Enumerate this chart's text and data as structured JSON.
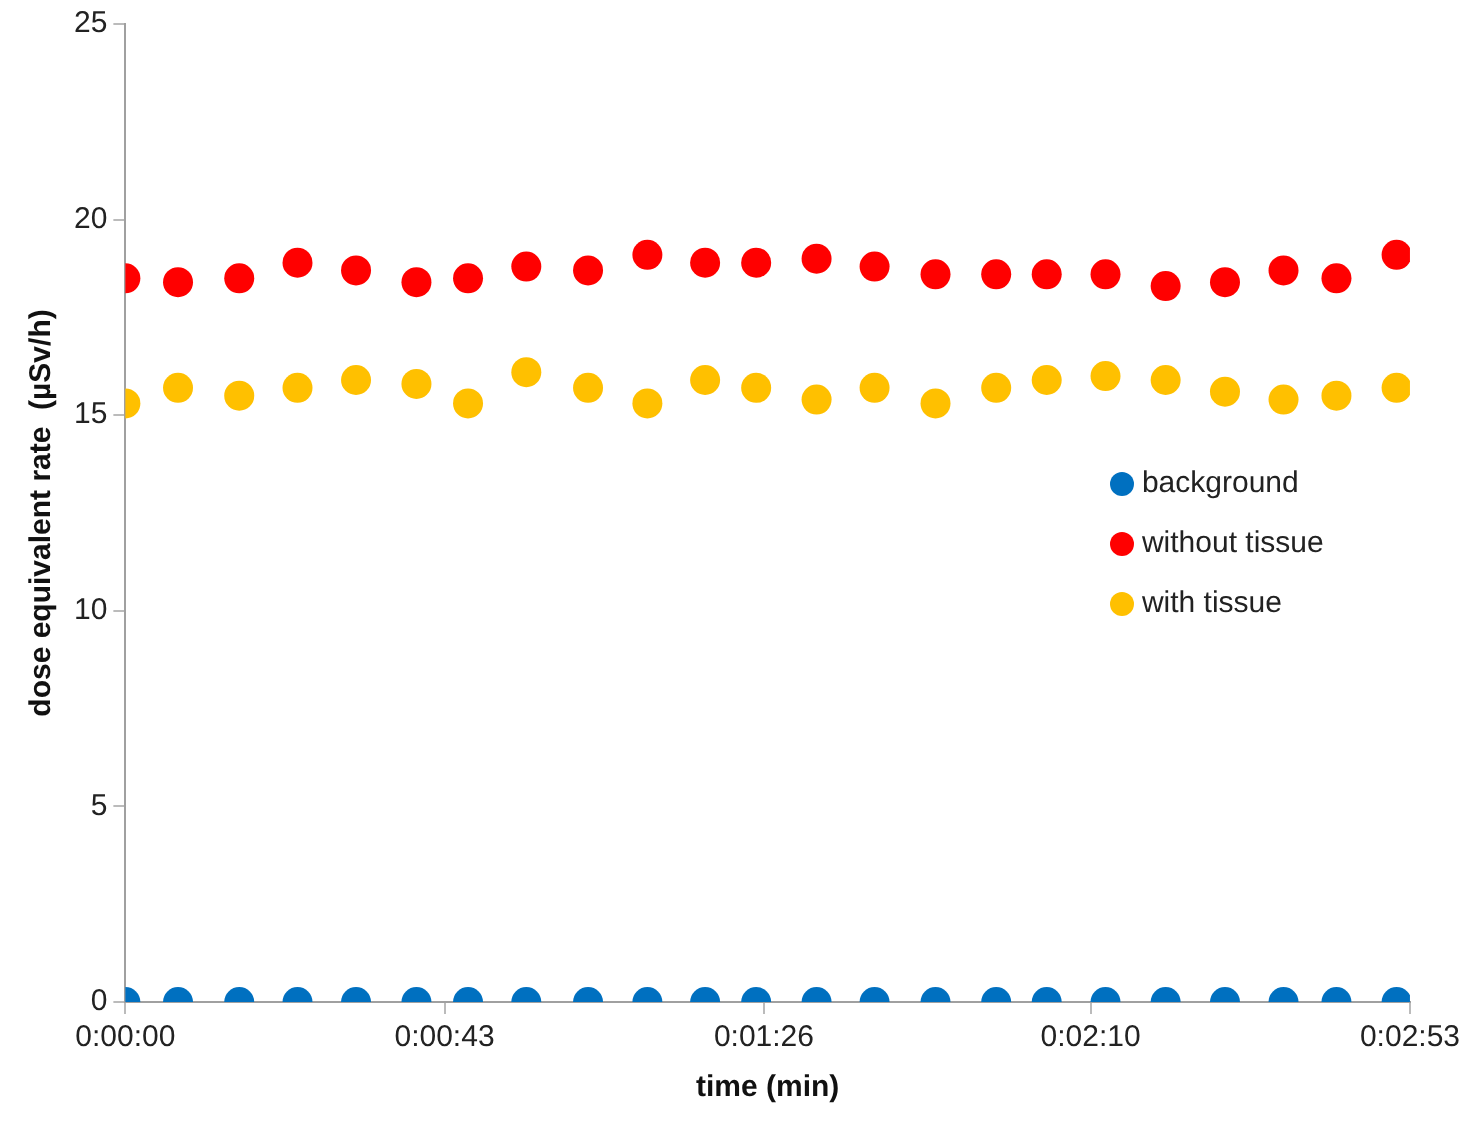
{
  "chart_data": {
    "type": "scatter",
    "xlabel": "time (min)",
    "ylabel": "dose equivalent rate  (µSv/h)",
    "x": [
      0,
      0.00197,
      0.00426,
      0.00644,
      0.00863,
      0.01089,
      0.01282,
      0.015,
      0.01731,
      0.01953,
      0.02169,
      0.0236,
      0.02586,
      0.02803,
      0.03031,
      0.03258,
      0.03447,
      0.03667,
      0.03892,
      0.04114,
      0.04333,
      0.04531,
      0.04756
    ],
    "series": [
      {
        "name": "background",
        "color": "#0070c0",
        "values": [
          0,
          0,
          0,
          0,
          0,
          0,
          0,
          0,
          0,
          0,
          0,
          0,
          0,
          0,
          0,
          0,
          0,
          0,
          0,
          0,
          0,
          0,
          0
        ]
      },
      {
        "name": "without tissue",
        "color": "#ff0000",
        "values": [
          18.5,
          18.4,
          18.5,
          18.9,
          18.7,
          18.4,
          18.5,
          18.8,
          18.7,
          19.1,
          18.9,
          18.9,
          19.0,
          18.8,
          18.6,
          18.6,
          18.6,
          18.6,
          18.3,
          18.4,
          18.7,
          18.5,
          19.1
        ]
      },
      {
        "name": "with tissue",
        "color": "#ffc000",
        "values": [
          15.3,
          15.7,
          15.5,
          15.7,
          15.9,
          15.8,
          15.3,
          16.1,
          15.7,
          15.3,
          15.9,
          15.7,
          15.4,
          15.7,
          15.3,
          15.7,
          15.9,
          16.0,
          15.9,
          15.6,
          15.4,
          15.5,
          15.7
        ]
      }
    ],
    "xlim": [
      0,
      0.04806
    ],
    "xticks": [
      {
        "value": 0,
        "label": "0:00:00"
      },
      {
        "value": 0.01194,
        "label": "0:00:43"
      },
      {
        "value": 0.02389,
        "label": "0:01:26"
      },
      {
        "value": 0.03611,
        "label": "0:02:10"
      },
      {
        "value": 0.04806,
        "label": "0:02:53"
      }
    ],
    "ylim": [
      0,
      25
    ],
    "yticks": [
      0,
      5,
      10,
      15,
      20,
      25
    ],
    "grid": false,
    "legend": "right",
    "marker": "circle"
  }
}
